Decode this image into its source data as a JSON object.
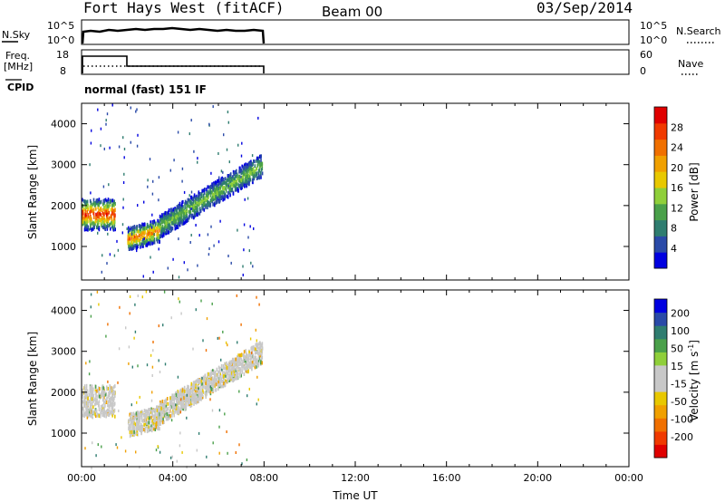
{
  "header": {
    "title": "Fort Hays West (fitACF)",
    "beam": "Beam 00",
    "date": "03/Sep/2014"
  },
  "top_panels": {
    "nsky_label": "N.Sky",
    "nsky_ticks": [
      "10^5",
      "10^0"
    ],
    "nsearch_label": "N.Search",
    "nsearch_ticks": [
      "10^5",
      "10^0"
    ],
    "freq_label_1": "Freq.",
    "freq_label_2": "[MHz]",
    "freq_ticks": [
      "18",
      "8"
    ],
    "nave_label": "Nave",
    "nave_ticks": [
      "60",
      "0"
    ],
    "cpid_label": "CPID",
    "cpid_text": "normal (fast) 151 IF"
  },
  "colors": {
    "power_scale": [
      "#0000e0",
      "#2a4aa8",
      "#2f7d70",
      "#4aa04a",
      "#8fcf3a",
      "#e8c800",
      "#f0a000",
      "#f07000",
      "#f03a00",
      "#e00000"
    ],
    "velocity_scale": [
      "#e00000",
      "#f03a00",
      "#f07000",
      "#f0a000",
      "#e8c800",
      "#c8c8c8",
      "#c8c8c8",
      "#8fcf3a",
      "#4aa04a",
      "#2f7d70",
      "#2a4aa8",
      "#0000e0"
    ]
  },
  "chart_data": [
    {
      "type": "heatmap",
      "panel": "power",
      "xlabel": "",
      "ylabel": "Slant Range [km]",
      "xlim": [
        "00:00",
        "24:00"
      ],
      "ylim": [
        180,
        4500
      ],
      "y_ticks": [
        "1000",
        "2000",
        "3000",
        "4000"
      ],
      "colorbar_label": "Power [dB]",
      "colorbar_ticks": [
        "4",
        "8",
        "12",
        "16",
        "20",
        "24",
        "28"
      ],
      "bands": [
        {
          "t0": 0.0,
          "t1": 1.45,
          "r0": 1450,
          "r1": 2200,
          "peak": 26
        },
        {
          "t0": 2.0,
          "t1": 3.4,
          "r0": 1000,
          "r1": 1600,
          "peak": 22
        },
        {
          "t0": 3.4,
          "t1": 7.9,
          "r0": 1300,
          "r1": 3400,
          "peak": 12
        }
      ]
    },
    {
      "type": "heatmap",
      "panel": "velocity",
      "xlabel": "Time UT",
      "ylabel": "Slant Range [km]",
      "xlim": [
        "00:00",
        "24:00"
      ],
      "ylim": [
        180,
        4500
      ],
      "x_ticks": [
        "00:00",
        "04:00",
        "08:00",
        "12:00",
        "16:00",
        "20:00",
        "00:00"
      ],
      "y_ticks": [
        "1000",
        "2000",
        "3000",
        "4000"
      ],
      "colorbar_label": "Velocity [m s^-1]",
      "colorbar_ticks": [
        "-200",
        "-100",
        "-50",
        "-15",
        "15",
        "50",
        "100",
        "200"
      ],
      "bands": [
        {
          "t0": 0.0,
          "t1": 1.45,
          "r0": 1450,
          "r1": 2200,
          "velocity": 0
        },
        {
          "t0": 2.0,
          "t1": 3.4,
          "r0": 1000,
          "r1": 1600,
          "velocity": 0
        },
        {
          "t0": 3.4,
          "t1": 7.9,
          "r0": 1300,
          "r1": 3400,
          "velocity": -20
        }
      ]
    }
  ]
}
